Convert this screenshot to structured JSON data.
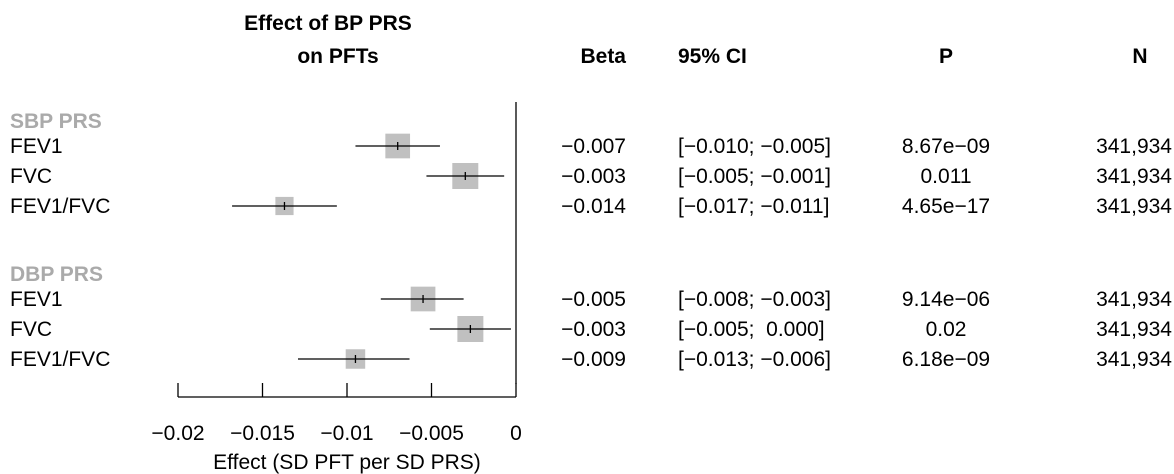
{
  "chart_data": {
    "type": "forest",
    "title": [
      "Effect of BP PRS",
      "on PFTs"
    ],
    "columns": {
      "beta": "Beta",
      "ci": "95% CI",
      "p": "P",
      "n": "N"
    },
    "xlabel": "Effect (SD PFT per SD PRS)",
    "xlim": [
      -0.02,
      0
    ],
    "x_ticks": [
      -0.02,
      -0.015,
      -0.01,
      -0.005,
      0
    ],
    "x_tick_labels": [
      "−0.02",
      "−0.015",
      "−0.01",
      "−0.005",
      "0"
    ],
    "reference_line": 0,
    "colors": {
      "group_label": "#aaaaaa",
      "box": "#c0c0c0",
      "line": "#000000"
    },
    "groups": [
      {
        "label": "SBP PRS",
        "rows": [
          {
            "label": "FEV1",
            "est": -0.007,
            "lo": -0.0095,
            "hi": -0.0045,
            "weight": 0.95,
            "beta": "−0.007",
            "ci": "[−0.010; −0.005]",
            "p": "8.67e−09",
            "n": "341,934"
          },
          {
            "label": "FVC",
            "est": -0.003,
            "lo": -0.0053,
            "hi": -0.0007,
            "weight": 1.0,
            "beta": "−0.003",
            "ci": "[−0.005; −0.001]",
            "p": "0.011",
            "n": "341,934"
          },
          {
            "label": "FEV1/FVC",
            "est": -0.0137,
            "lo": -0.0168,
            "hi": -0.0106,
            "weight": 0.7,
            "beta": "−0.014",
            "ci": "[−0.017; −0.011]",
            "p": "4.65e−17",
            "n": "341,934"
          }
        ]
      },
      {
        "label": "DBP PRS",
        "rows": [
          {
            "label": "FEV1",
            "est": -0.0055,
            "lo": -0.008,
            "hi": -0.0031,
            "weight": 0.95,
            "beta": "−0.005",
            "ci": "[−0.008; −0.003]",
            "p": "9.14e−06",
            "n": "341,934"
          },
          {
            "label": "FVC",
            "est": -0.0027,
            "lo": -0.0051,
            "hi": -0.0003,
            "weight": 1.0,
            "beta": "−0.003",
            "ci": "[−0.005;  0.000]",
            "p": "0.02",
            "n": "341,934"
          },
          {
            "label": "FEV1/FVC",
            "est": -0.0095,
            "lo": -0.0129,
            "hi": -0.0063,
            "weight": 0.75,
            "beta": "−0.009",
            "ci": "[−0.013; −0.006]",
            "p": "6.18e−09",
            "n": "341,934"
          }
        ]
      }
    ]
  }
}
